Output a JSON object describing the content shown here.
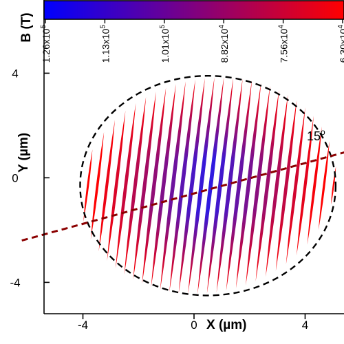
{
  "chart_data": {
    "type": "heatmap",
    "description_units": "micrometers",
    "xlabel": "X (µm)",
    "ylabel": "Y (µm)",
    "xlim": [
      -5.4,
      5.4
    ],
    "ylim": [
      -5.2,
      6.8
    ],
    "x_ticks": [
      -4,
      0,
      4
    ],
    "x_tick_labels": [
      "-4",
      "0",
      "4"
    ],
    "y_ticks": [
      -4,
      0,
      4
    ],
    "y_tick_labels": [
      "-4",
      "0",
      "4"
    ],
    "colorbar": {
      "label": "B (T)",
      "tick_labels": [
        "1.26x10",
        "1.13x10",
        "1.01x10",
        "8.82x10",
        "7.56x10",
        "6.30x10"
      ],
      "tick_exponents": [
        "5",
        "5",
        "5",
        "4",
        "4",
        "4"
      ],
      "values": [
        126000,
        113000,
        101000,
        88200,
        75600,
        63000
      ],
      "low_color": "#0000ff",
      "high_color": "#ff0000"
    },
    "ellipse": {
      "center": [
        0.5,
        -0.3
      ],
      "semi_axis_x": 4.6,
      "semi_axis_y": 4.2,
      "style": "dashed",
      "color": "#000000"
    },
    "arrow": {
      "angle_deg": 15,
      "from": [
        -6.2,
        -2.4
      ],
      "to": [
        6.2,
        1.2
      ],
      "color": "#8b0000",
      "label": "15",
      "label_superscript": "o"
    },
    "stripes": {
      "count": 30,
      "spacing": 0.34,
      "x_first": -4.5,
      "tilt_deg": 15,
      "low_field_color": "#ff0000",
      "high_field_color": "#2a1ae6"
    }
  }
}
